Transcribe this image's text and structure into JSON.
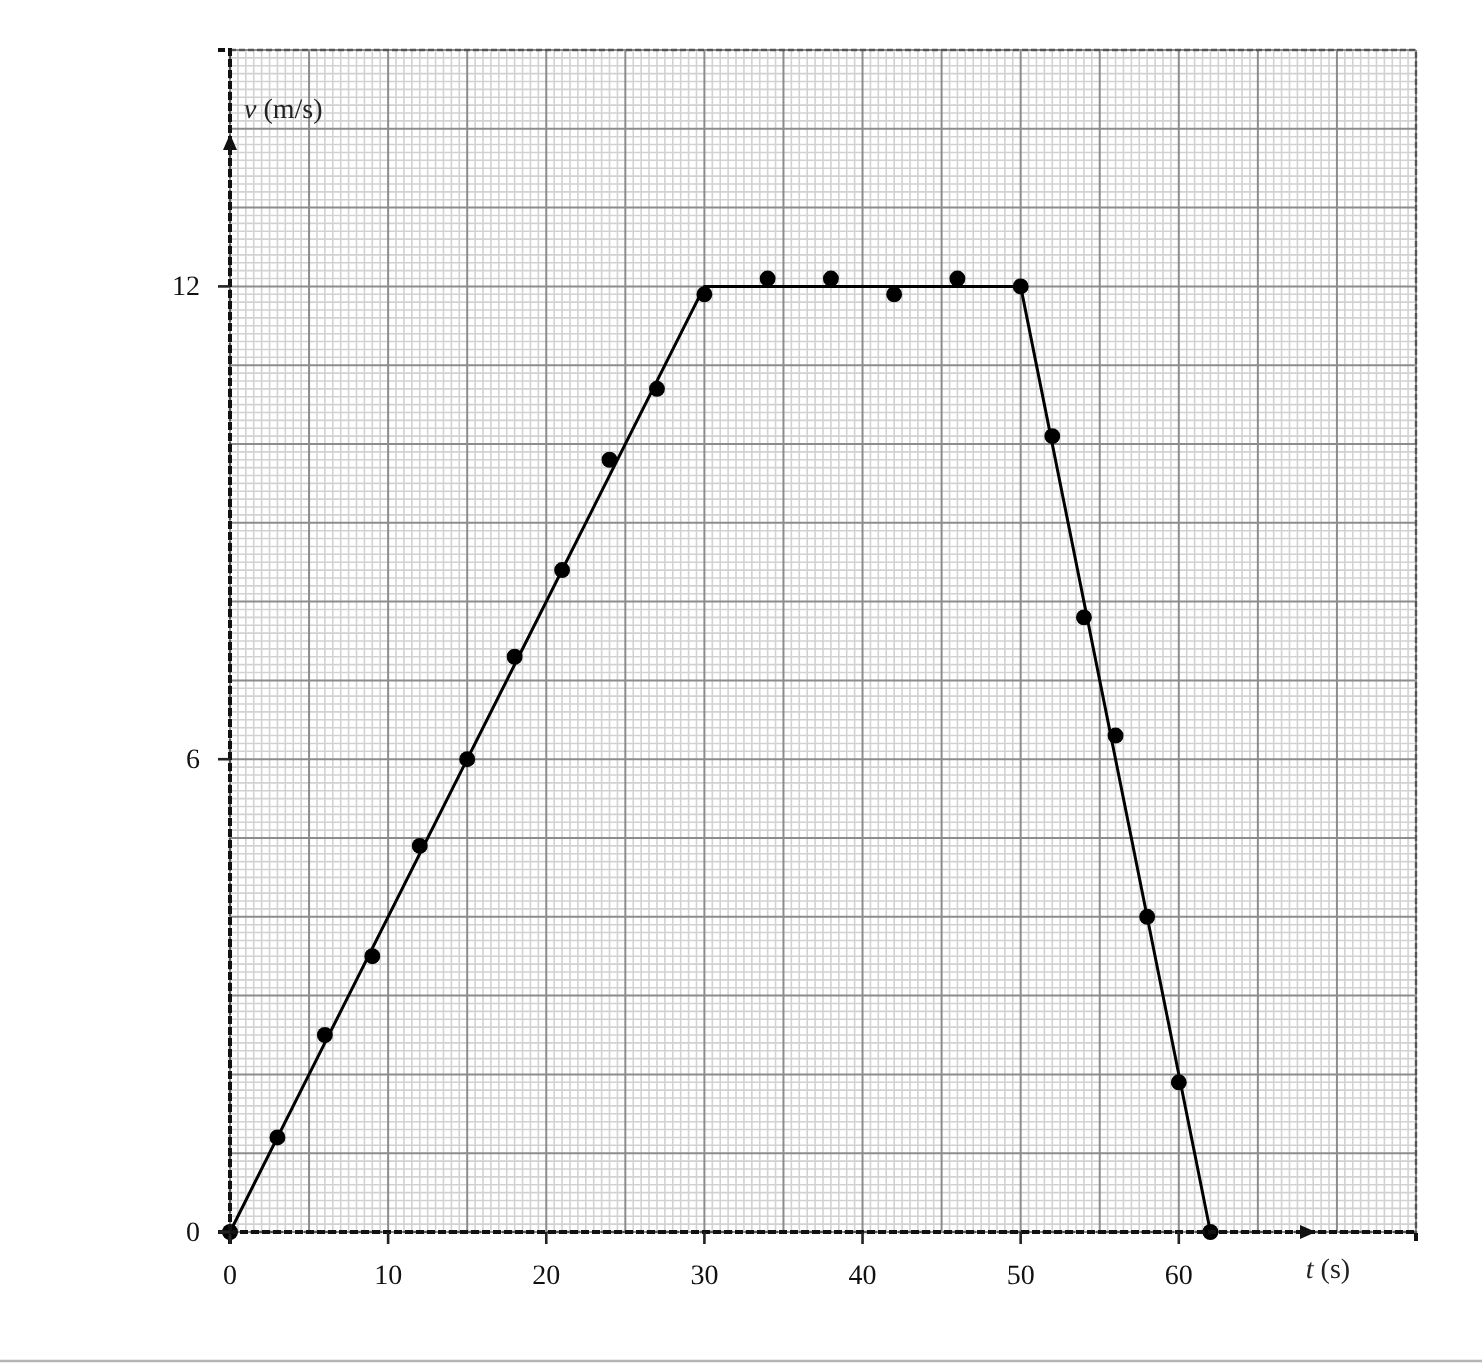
{
  "chart_data": {
    "type": "scatter",
    "xlabel": "t (s)",
    "ylabel": "v (m/s)",
    "xlim": [
      0,
      75
    ],
    "ylim": [
      0,
      15
    ],
    "xticks": [
      0,
      10,
      20,
      30,
      40,
      50,
      60
    ],
    "yticks": [
      0,
      6,
      12
    ],
    "grid": true,
    "series": [
      {
        "type": "line",
        "color": "#000000",
        "marker": "none",
        "x": [
          0,
          30,
          50,
          62
        ],
        "values": [
          0,
          12,
          12,
          0
        ]
      },
      {
        "color": "#000000",
        "marker": "circle",
        "x": [
          0,
          3,
          6,
          9,
          12,
          15,
          18,
          21,
          24,
          27,
          30,
          34,
          38,
          42,
          46,
          50,
          52,
          54,
          56,
          58,
          60,
          62
        ],
        "values": [
          0,
          1.2,
          2.5,
          3.5,
          4.9,
          6.0,
          7.3,
          8.4,
          9.8,
          10.7,
          11.9,
          12.1,
          12.1,
          11.9,
          12.1,
          12.0,
          10.1,
          7.8,
          6.3,
          4.0,
          1.9,
          0
        ]
      }
    ]
  }
}
